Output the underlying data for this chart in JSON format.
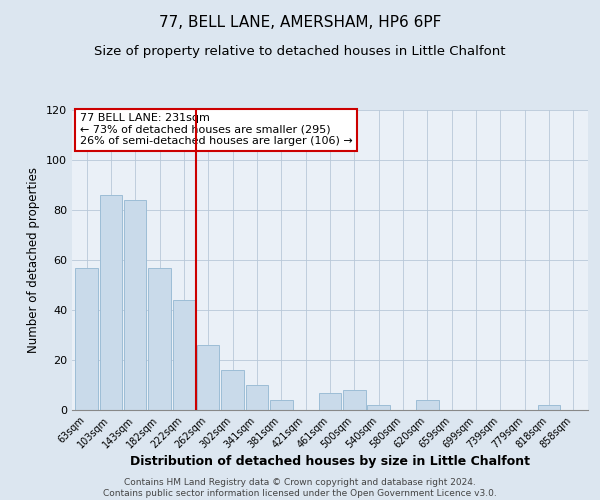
{
  "title": "77, BELL LANE, AMERSHAM, HP6 6PF",
  "subtitle": "Size of property relative to detached houses in Little Chalfont",
  "xlabel": "Distribution of detached houses by size in Little Chalfont",
  "ylabel": "Number of detached properties",
  "bar_labels": [
    "63sqm",
    "103sqm",
    "143sqm",
    "182sqm",
    "222sqm",
    "262sqm",
    "302sqm",
    "341sqm",
    "381sqm",
    "421sqm",
    "461sqm",
    "500sqm",
    "540sqm",
    "580sqm",
    "620sqm",
    "659sqm",
    "699sqm",
    "739sqm",
    "779sqm",
    "818sqm",
    "858sqm"
  ],
  "bar_values": [
    57,
    86,
    84,
    57,
    44,
    26,
    16,
    10,
    4,
    0,
    7,
    8,
    2,
    0,
    4,
    0,
    0,
    0,
    0,
    2,
    0
  ],
  "bar_color": "#c9daea",
  "bar_edge_color": "#9dbdd6",
  "vline_x": 4.5,
  "vline_color": "#cc0000",
  "annotation_text": "77 BELL LANE: 231sqm\n← 73% of detached houses are smaller (295)\n26% of semi-detached houses are larger (106) →",
  "annotation_box_color": "#ffffff",
  "annotation_box_edge": "#cc0000",
  "ylim": [
    0,
    120
  ],
  "yticks": [
    0,
    20,
    40,
    60,
    80,
    100,
    120
  ],
  "bg_color": "#dce6f0",
  "plot_bg_color": "#eaf0f7",
  "footer": "Contains HM Land Registry data © Crown copyright and database right 2024.\nContains public sector information licensed under the Open Government Licence v3.0.",
  "title_fontsize": 11,
  "subtitle_fontsize": 9.5,
  "xlabel_fontsize": 9,
  "ylabel_fontsize": 8.5,
  "footer_fontsize": 6.5
}
